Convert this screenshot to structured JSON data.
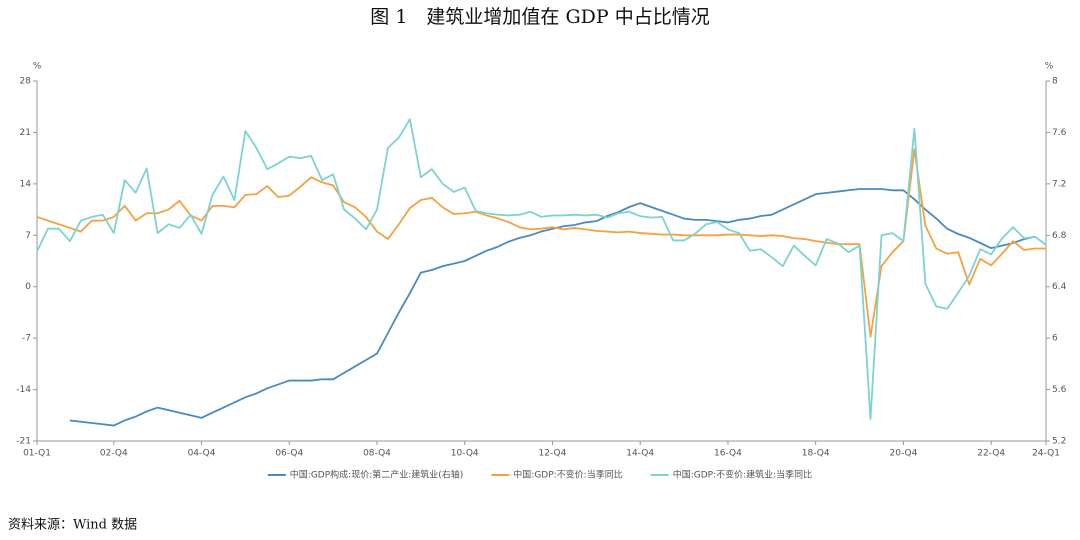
{
  "chart_data": {
    "type": "line",
    "title": "图 1　建筑业增加值在 GDP 中占比情况",
    "source": "资料来源：Wind 数据",
    "y_unit": "%",
    "y2_unit": "%",
    "categories": [
      "01-Q1",
      null,
      null,
      null,
      null,
      null,
      null,
      "02-Q4",
      null,
      null,
      null,
      null,
      null,
      null,
      null,
      "04-Q4",
      null,
      null,
      null,
      null,
      null,
      null,
      null,
      "06-Q4",
      null,
      null,
      null,
      null,
      null,
      null,
      null,
      "08-Q4",
      null,
      null,
      null,
      null,
      null,
      null,
      null,
      "10-Q4",
      null,
      null,
      null,
      null,
      null,
      null,
      null,
      "12-Q4",
      null,
      null,
      null,
      null,
      null,
      null,
      null,
      "14-Q4",
      null,
      null,
      null,
      null,
      null,
      null,
      null,
      "16-Q4",
      null,
      null,
      null,
      null,
      null,
      null,
      null,
      "18-Q4",
      null,
      null,
      null,
      null,
      null,
      null,
      null,
      "20-Q4",
      null,
      null,
      null,
      null,
      null,
      null,
      null,
      "22-Q4",
      null,
      null,
      null,
      null,
      "24-Q1"
    ],
    "ylim": [
      -21,
      28
    ],
    "yticks": [
      -21,
      -14,
      -7,
      0,
      7,
      14,
      21,
      28
    ],
    "y2lim": [
      5.2,
      8
    ],
    "y2ticks": [
      5.2,
      5.6,
      6,
      6.4,
      6.8,
      7.2,
      7.6,
      8
    ],
    "series": [
      {
        "name": "中国:GDP构成:现价:第二产业:建筑业(右轴)",
        "color": "#4a8bbf",
        "axis": "y2",
        "values": [
          null,
          null,
          null,
          5.36,
          5.35,
          5.34,
          5.33,
          5.32,
          5.36,
          5.39,
          5.43,
          5.46,
          5.44,
          5.42,
          5.4,
          5.38,
          5.42,
          5.46,
          5.5,
          5.54,
          5.57,
          5.61,
          5.64,
          5.67,
          5.67,
          5.67,
          5.68,
          5.68,
          5.73,
          5.78,
          5.83,
          5.88,
          6.04,
          6.2,
          6.35,
          6.51,
          6.53,
          6.56,
          6.58,
          6.6,
          6.64,
          6.68,
          6.71,
          6.75,
          6.78,
          6.8,
          6.83,
          6.85,
          6.87,
          6.88,
          6.9,
          6.91,
          6.95,
          6.98,
          7.02,
          7.05,
          7.02,
          6.99,
          6.96,
          6.93,
          6.92,
          6.92,
          6.91,
          6.9,
          6.92,
          6.93,
          6.95,
          6.96,
          7.0,
          7.04,
          7.08,
          7.12,
          7.13,
          7.14,
          7.15,
          7.16,
          7.16,
          7.16,
          7.15,
          7.15,
          7.08,
          7.0,
          6.93,
          6.85,
          6.81,
          6.78,
          6.74,
          6.7,
          6.72,
          6.74,
          6.77,
          6.79,
          null
        ]
      },
      {
        "name": "中国:GDP:不变价:当季同比",
        "color": "#f5a142",
        "values": [
          9.5,
          9,
          8.5,
          8,
          7.5,
          9,
          9,
          9.5,
          11,
          9,
          10,
          10,
          10.5,
          11.7,
          9.7,
          9,
          11,
          11,
          10.8,
          12.5,
          12.6,
          13.7,
          12.2,
          12.4,
          13.6,
          14.9,
          14.2,
          13.8,
          11.5,
          10.8,
          9.5,
          7.5,
          6.5,
          8.5,
          10.7,
          11.8,
          12.1,
          10.8,
          9.9,
          10,
          10.2,
          9.7,
          9.3,
          8.8,
          8.1,
          7.8,
          7.9,
          8.1,
          7.8,
          8,
          7.8,
          7.6,
          7.5,
          7.4,
          7.5,
          7.3,
          7.2,
          7.1,
          7.1,
          7,
          7,
          7,
          7,
          7.1,
          7.1,
          7,
          6.9,
          7,
          6.9,
          6.6,
          6.5,
          6.2,
          6,
          5.8,
          5.8,
          5.8,
          -6.8,
          2.8,
          4.7,
          6.2,
          18.7,
          8.3,
          5.2,
          4.5,
          4.7,
          0.3,
          3.8,
          2.9,
          4.5,
          6.2,
          5,
          5.2,
          5.2
        ]
      },
      {
        "name": "中国:GDP:不变价:建筑业:当季同比",
        "color": "#7dd3d0",
        "values": [
          4.8,
          7.9,
          7.9,
          6.2,
          9,
          9.5,
          9.8,
          7.3,
          14.5,
          12.8,
          16.1,
          7.3,
          8.5,
          8,
          9.8,
          7.2,
          12.5,
          15,
          11.8,
          21.2,
          18.9,
          16,
          16.8,
          17.7,
          17.5,
          17.8,
          14.5,
          15.3,
          10.5,
          9.3,
          7.8,
          10.5,
          18.9,
          20.3,
          22.8,
          14.9,
          16,
          14,
          12.9,
          13.5,
          10.3,
          10,
          9.8,
          9.7,
          9.8,
          10.2,
          9.5,
          9.7,
          9.7,
          9.8,
          9.7,
          9.8,
          9.4,
          10,
          10.2,
          9.6,
          9.4,
          9.5,
          6.3,
          6.3,
          7.2,
          8.5,
          8.8,
          7.8,
          7.3,
          4.9,
          5.1,
          4,
          2.8,
          5.6,
          4.2,
          2.9,
          6.5,
          5.9,
          4.7,
          5.6,
          -18,
          7,
          7.3,
          6.2,
          21.5,
          0.4,
          -2.7,
          -3,
          -0.8,
          1.5,
          5.1,
          4.4,
          6.6,
          8.1,
          6.6,
          6.8,
          5.7
        ]
      }
    ]
  }
}
